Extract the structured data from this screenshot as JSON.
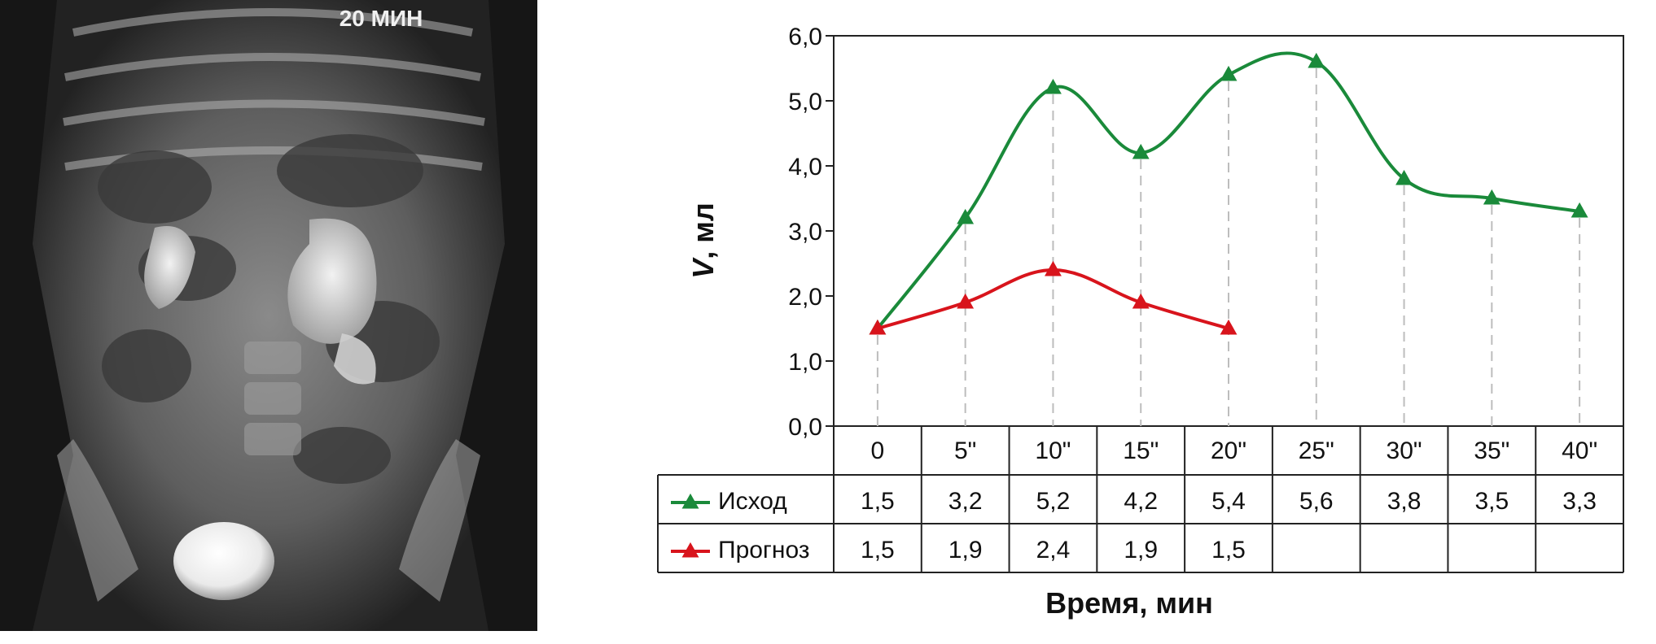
{
  "xray": {
    "label": "20 МИН"
  },
  "chart_data": {
    "type": "line",
    "xlabel": "Время, мин",
    "ylabel": "V, мл",
    "ylabel_italic_part": "V",
    "ylabel_rest": ", мл",
    "ylim": [
      0,
      6
    ],
    "yticks": [
      "0,0",
      "1,0",
      "2,0",
      "3,0",
      "4,0",
      "5,0",
      "6,0"
    ],
    "categories": [
      "0",
      "5\"",
      "10\"",
      "15\"",
      "20\"",
      "25\"",
      "30\"",
      "35\"",
      "40\""
    ],
    "grid": "vertical dashed drop lines at categories",
    "legend": "data table rows below plot",
    "series": [
      {
        "name": "Исход",
        "color": "#1a8a3a",
        "marker": "triangle",
        "values": [
          1.5,
          3.2,
          5.2,
          4.2,
          5.4,
          5.6,
          3.8,
          3.5,
          3.3
        ],
        "labels": [
          "1,5",
          "3,2",
          "5,2",
          "4,2",
          "5,4",
          "5,6",
          "3,8",
          "3,5",
          "3,3"
        ]
      },
      {
        "name": "Прогноз",
        "color": "#d8141c",
        "marker": "triangle",
        "values": [
          1.5,
          1.9,
          2.4,
          1.9,
          1.5,
          null,
          null,
          null,
          null
        ],
        "labels": [
          "1,5",
          "1,9",
          "2,4",
          "1,9",
          "1,5",
          "",
          "",
          "",
          ""
        ]
      }
    ]
  }
}
